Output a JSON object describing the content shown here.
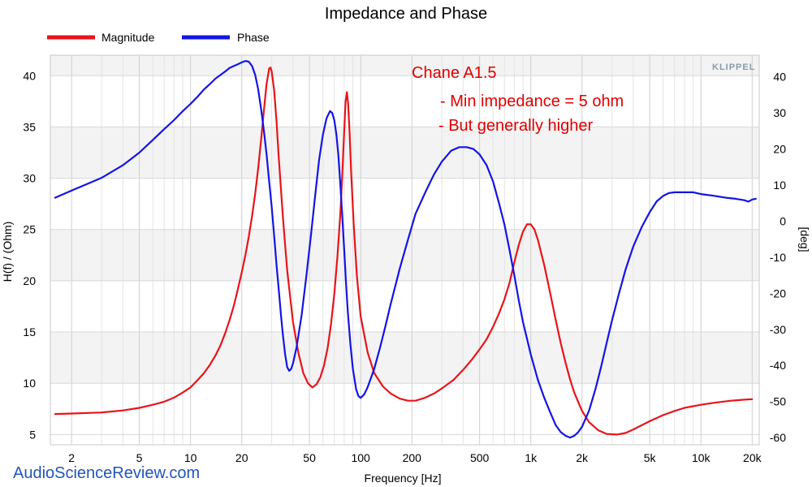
{
  "chart_data": {
    "type": "line",
    "title": "Impedance and Phase",
    "xlabel": "Frequency [Hz]",
    "ylabel": "H(f) / (Ohm)",
    "y2label": "[deg]",
    "xscale": "log",
    "xlim": [
      1.5,
      22000
    ],
    "ylim": [
      4,
      42
    ],
    "y2lim": [
      -62,
      46
    ],
    "x_ticks": [
      {
        "value": 2,
        "label": "2"
      },
      {
        "value": 5,
        "label": "5"
      },
      {
        "value": 10,
        "label": "10"
      },
      {
        "value": 20,
        "label": "20"
      },
      {
        "value": 50,
        "label": "50"
      },
      {
        "value": 100,
        "label": "100"
      },
      {
        "value": 200,
        "label": "200"
      },
      {
        "value": 500,
        "label": "500"
      },
      {
        "value": 1000,
        "label": "1k"
      },
      {
        "value": 2000,
        "label": "2k"
      },
      {
        "value": 5000,
        "label": "5k"
      },
      {
        "value": 10000,
        "label": "10k"
      },
      {
        "value": 20000,
        "label": "20k"
      }
    ],
    "y_ticks": [
      5,
      10,
      15,
      20,
      25,
      30,
      35,
      40
    ],
    "y2_ticks": [
      -60,
      -50,
      -40,
      -30,
      -20,
      -10,
      0,
      10,
      20,
      30,
      40
    ],
    "grid": true,
    "legend": {
      "placement": "top-left"
    },
    "series": [
      {
        "name": "Magnitude",
        "color": "#e8141a",
        "axis": "left",
        "points": [
          [
            1.6,
            7.0
          ],
          [
            2,
            7.05
          ],
          [
            3,
            7.15
          ],
          [
            4,
            7.35
          ],
          [
            5,
            7.6
          ],
          [
            6,
            7.9
          ],
          [
            7,
            8.2
          ],
          [
            8,
            8.6
          ],
          [
            9,
            9.1
          ],
          [
            10,
            9.6
          ],
          [
            11,
            10.3
          ],
          [
            12,
            11.0
          ],
          [
            13,
            11.8
          ],
          [
            14,
            12.7
          ],
          [
            15,
            13.7
          ],
          [
            16,
            14.9
          ],
          [
            17,
            16.2
          ],
          [
            18,
            17.6
          ],
          [
            19,
            19.2
          ],
          [
            20,
            20.8
          ],
          [
            21,
            22.5
          ],
          [
            22,
            24.3
          ],
          [
            23,
            26.3
          ],
          [
            24,
            28.5
          ],
          [
            25,
            31.0
          ],
          [
            26,
            33.8
          ],
          [
            27,
            36.6
          ],
          [
            28,
            39.2
          ],
          [
            29,
            40.7
          ],
          [
            29.5,
            40.8
          ],
          [
            30,
            40.4
          ],
          [
            31,
            38.6
          ],
          [
            32,
            35.6
          ],
          [
            33,
            32.0
          ],
          [
            35,
            26.0
          ],
          [
            37,
            21.0
          ],
          [
            40,
            16.0
          ],
          [
            43,
            13.0
          ],
          [
            46,
            11.0
          ],
          [
            49,
            10.0
          ],
          [
            52,
            9.6
          ],
          [
            55,
            9.9
          ],
          [
            58,
            10.6
          ],
          [
            61,
            11.8
          ],
          [
            64,
            13.5
          ],
          [
            67,
            15.8
          ],
          [
            70,
            18.7
          ],
          [
            73,
            22.3
          ],
          [
            76,
            26.6
          ],
          [
            78,
            30.5
          ],
          [
            80,
            34.6
          ],
          [
            81.5,
            37.5
          ],
          [
            83,
            38.4
          ],
          [
            84.5,
            37.2
          ],
          [
            86,
            34.5
          ],
          [
            88,
            30.5
          ],
          [
            91,
            25.5
          ],
          [
            95,
            20.5
          ],
          [
            100,
            16.5
          ],
          [
            110,
            13.0
          ],
          [
            120,
            11.0
          ],
          [
            135,
            9.7
          ],
          [
            150,
            9.0
          ],
          [
            170,
            8.5
          ],
          [
            190,
            8.3
          ],
          [
            210,
            8.3
          ],
          [
            240,
            8.6
          ],
          [
            270,
            9.0
          ],
          [
            300,
            9.5
          ],
          [
            350,
            10.3
          ],
          [
            400,
            11.3
          ],
          [
            450,
            12.3
          ],
          [
            500,
            13.3
          ],
          [
            550,
            14.3
          ],
          [
            600,
            15.5
          ],
          [
            650,
            16.8
          ],
          [
            700,
            18.2
          ],
          [
            750,
            19.8
          ],
          [
            800,
            21.8
          ],
          [
            850,
            23.5
          ],
          [
            900,
            24.8
          ],
          [
            950,
            25.5
          ],
          [
            1000,
            25.5
          ],
          [
            1050,
            25.0
          ],
          [
            1100,
            24.0
          ],
          [
            1200,
            21.5
          ],
          [
            1300,
            18.8
          ],
          [
            1400,
            16.2
          ],
          [
            1500,
            13.9
          ],
          [
            1600,
            12.0
          ],
          [
            1700,
            10.4
          ],
          [
            1800,
            9.1
          ],
          [
            2000,
            7.3
          ],
          [
            2200,
            6.2
          ],
          [
            2500,
            5.4
          ],
          [
            2800,
            5.05
          ],
          [
            3200,
            5.0
          ],
          [
            3600,
            5.15
          ],
          [
            4000,
            5.5
          ],
          [
            5000,
            6.3
          ],
          [
            6000,
            6.9
          ],
          [
            7000,
            7.3
          ],
          [
            8000,
            7.6
          ],
          [
            10000,
            7.9
          ],
          [
            12000,
            8.1
          ],
          [
            15000,
            8.3
          ],
          [
            18000,
            8.4
          ],
          [
            20000,
            8.45
          ]
        ]
      },
      {
        "name": "Phase",
        "color": "#1414e6",
        "axis": "right",
        "points": [
          [
            1.6,
            6.5
          ],
          [
            2,
            8.5
          ],
          [
            3,
            12.0
          ],
          [
            4,
            15.5
          ],
          [
            5,
            19.0
          ],
          [
            6,
            22.5
          ],
          [
            7,
            25.5
          ],
          [
            8,
            28.0
          ],
          [
            9,
            30.5
          ],
          [
            10,
            32.5
          ],
          [
            11,
            34.5
          ],
          [
            12,
            36.5
          ],
          [
            13,
            38.0
          ],
          [
            14,
            39.5
          ],
          [
            15,
            40.5
          ],
          [
            16,
            41.5
          ],
          [
            17,
            42.5
          ],
          [
            18,
            43.0
          ],
          [
            19,
            43.5
          ],
          [
            20,
            44.0
          ],
          [
            21,
            44.4
          ],
          [
            22,
            44.2
          ],
          [
            23,
            43.0
          ],
          [
            24,
            40.5
          ],
          [
            25,
            36.5
          ],
          [
            26,
            31.0
          ],
          [
            27,
            25.0
          ],
          [
            28,
            18.5
          ],
          [
            29,
            11.0
          ],
          [
            30,
            4.0
          ],
          [
            31,
            -4.0
          ],
          [
            32,
            -12.0
          ],
          [
            33,
            -19.0
          ],
          [
            34,
            -26.0
          ],
          [
            35,
            -32.0
          ],
          [
            36,
            -37.0
          ],
          [
            37,
            -40.5
          ],
          [
            38,
            -41.5
          ],
          [
            39,
            -41.0
          ],
          [
            40,
            -39.5
          ],
          [
            42,
            -35.0
          ],
          [
            45,
            -26.0
          ],
          [
            48,
            -15.0
          ],
          [
            51,
            -4.0
          ],
          [
            54,
            7.0
          ],
          [
            57,
            17.0
          ],
          [
            60,
            24.0
          ],
          [
            63,
            28.5
          ],
          [
            66,
            30.5
          ],
          [
            68,
            30.0
          ],
          [
            70,
            28.0
          ],
          [
            72,
            24.0
          ],
          [
            74,
            18.0
          ],
          [
            76,
            10.0
          ],
          [
            78,
            1.0
          ],
          [
            80,
            -8.0
          ],
          [
            82,
            -17.0
          ],
          [
            84,
            -25.0
          ],
          [
            87,
            -34.0
          ],
          [
            90,
            -41.0
          ],
          [
            94,
            -46.5
          ],
          [
            97,
            -48.5
          ],
          [
            100,
            -49.0
          ],
          [
            105,
            -48.0
          ],
          [
            110,
            -46.0
          ],
          [
            120,
            -41.0
          ],
          [
            130,
            -35.0
          ],
          [
            140,
            -29.0
          ],
          [
            150,
            -23.0
          ],
          [
            170,
            -13.0
          ],
          [
            190,
            -5.0
          ],
          [
            210,
            2.0
          ],
          [
            240,
            8.0
          ],
          [
            270,
            13.0
          ],
          [
            300,
            16.5
          ],
          [
            340,
            19.5
          ],
          [
            380,
            20.5
          ],
          [
            420,
            20.5
          ],
          [
            460,
            20.0
          ],
          [
            500,
            18.5
          ],
          [
            550,
            15.5
          ],
          [
            600,
            11.0
          ],
          [
            650,
            5.0
          ],
          [
            700,
            -1.0
          ],
          [
            750,
            -8.0
          ],
          [
            800,
            -15.0
          ],
          [
            850,
            -22.0
          ],
          [
            900,
            -28.0
          ],
          [
            1000,
            -37.0
          ],
          [
            1100,
            -44.0
          ],
          [
            1200,
            -49.0
          ],
          [
            1300,
            -53.0
          ],
          [
            1400,
            -56.5
          ],
          [
            1500,
            -58.5
          ],
          [
            1600,
            -59.5
          ],
          [
            1700,
            -60.0
          ],
          [
            1800,
            -59.5
          ],
          [
            1900,
            -58.5
          ],
          [
            2000,
            -57.0
          ],
          [
            2200,
            -52.5
          ],
          [
            2400,
            -46.5
          ],
          [
            2600,
            -40.0
          ],
          [
            2800,
            -33.5
          ],
          [
            3000,
            -27.5
          ],
          [
            3300,
            -20.0
          ],
          [
            3600,
            -13.5
          ],
          [
            4000,
            -7.0
          ],
          [
            4500,
            -1.5
          ],
          [
            5000,
            2.5
          ],
          [
            5500,
            5.5
          ],
          [
            6000,
            7.0
          ],
          [
            6500,
            7.8
          ],
          [
            7000,
            8.0
          ],
          [
            8000,
            8.0
          ],
          [
            9000,
            8.0
          ],
          [
            10000,
            7.5
          ],
          [
            12000,
            7.0
          ],
          [
            14000,
            6.5
          ],
          [
            16000,
            6.2
          ],
          [
            18000,
            5.8
          ],
          [
            19000,
            5.4
          ],
          [
            20000,
            6.0
          ],
          [
            21000,
            6.2
          ]
        ]
      }
    ],
    "annotations": [
      "Chane A1.5",
      "- Min impedance = 5 ohm",
      "- But generally higher"
    ],
    "watermarks": [
      "KLIPPEL",
      "AudioScienceReview.com"
    ]
  }
}
